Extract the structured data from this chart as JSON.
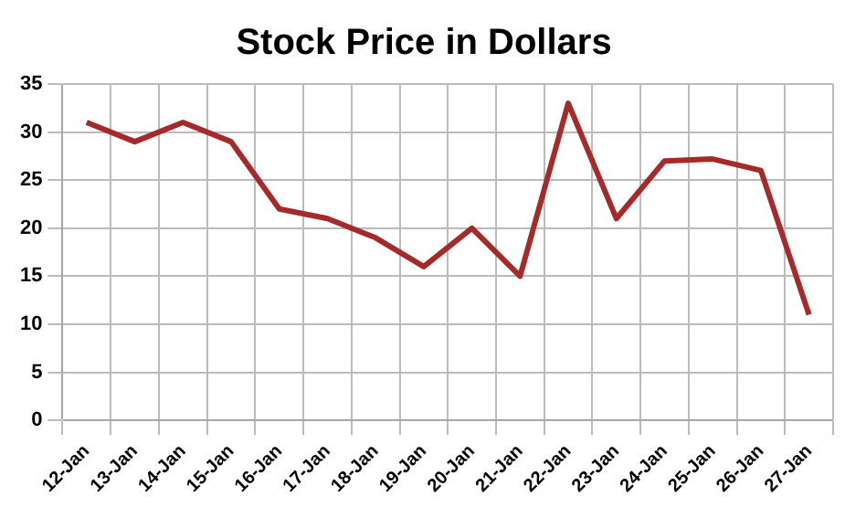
{
  "chart_data": {
    "type": "line",
    "title": "Stock Price in Dollars",
    "categories": [
      "12-Jan",
      "13-Jan",
      "14-Jan",
      "15-Jan",
      "16-Jan",
      "17-Jan",
      "18-Jan",
      "19-Jan",
      "20-Jan",
      "21-Jan",
      "22-Jan",
      "23-Jan",
      "24-Jan",
      "25-Jan",
      "26-Jan",
      "27-Jan"
    ],
    "series": [
      {
        "color": "#a52a2a",
        "values": [
          31,
          29,
          31,
          29,
          22,
          21,
          19,
          16,
          20,
          15,
          33,
          21,
          27,
          27.2,
          26,
          11
        ]
      }
    ],
    "ylim": [
      0,
      35
    ],
    "yticks": [
      0,
      5,
      10,
      15,
      20,
      25,
      30,
      35
    ],
    "grid": true,
    "legend": false,
    "marker": "none",
    "line_style": "solid"
  }
}
